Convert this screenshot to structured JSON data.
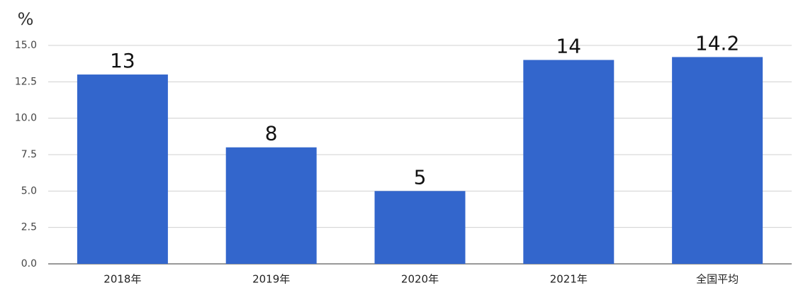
{
  "chart_data": {
    "type": "bar",
    "y_label": "%",
    "categories": [
      "2018年",
      "2019年",
      "2020年",
      "2021年",
      "全国平均"
    ],
    "values": [
      13,
      8,
      5,
      14,
      14.2
    ],
    "color": "#3366cc",
    "ylim": [
      0,
      15
    ],
    "yticks": [
      {
        "value": 0,
        "label": "0.0"
      },
      2.5,
      {
        "value": 5,
        "label": "5.0"
      },
      7.5,
      {
        "value": 10,
        "label": "10.0"
      },
      12.5,
      {
        "value": 15,
        "label": "15.0"
      }
    ],
    "grid": true
  }
}
